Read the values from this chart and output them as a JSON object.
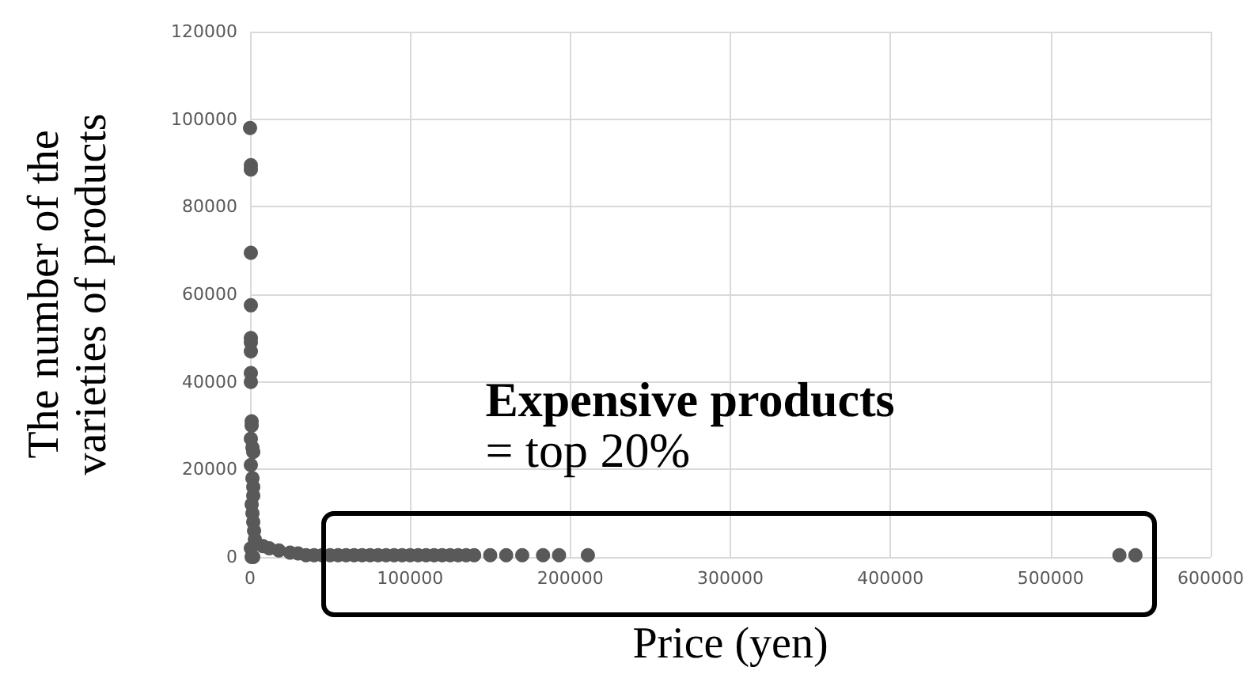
{
  "chart_data": {
    "type": "scatter",
    "xlabel": "Price (yen)",
    "ylabel": "The number of the varieties of products",
    "annotations": [
      "Expensive products",
      "= top 20%"
    ],
    "xlim": [
      0,
      600000
    ],
    "xticks": [
      0,
      100000,
      200000,
      300000,
      400000,
      500000,
      600000
    ],
    "ylim": [
      0,
      120000
    ],
    "yticks": [
      0,
      20000,
      40000,
      60000,
      80000,
      100000,
      120000
    ],
    "grid": true,
    "marker": "circle",
    "series": [
      {
        "color": "#595959",
        "x": [
          0,
          500,
          500,
          500,
          500,
          500,
          500,
          500,
          500,
          500,
          1000,
          1000,
          500,
          1500,
          2000,
          500,
          1500,
          2000,
          2000,
          1000,
          1500,
          2000,
          2500,
          3000,
          500,
          1000,
          2000,
          8000,
          12000,
          18000,
          25000,
          30000,
          35000,
          40000,
          45000,
          50000,
          55000,
          60000,
          65000,
          70000,
          75000,
          80000,
          85000,
          90000,
          95000,
          100000,
          105000,
          110000,
          115000,
          120000,
          125000,
          130000,
          135000,
          140000,
          150000,
          160000,
          170000,
          183000,
          193000,
          211000,
          543000,
          553000
        ],
        "values": [
          98000,
          89500,
          88500,
          69500,
          57500,
          50000,
          49000,
          47000,
          42000,
          40000,
          31000,
          30000,
          27000,
          25000,
          24000,
          21000,
          18000,
          16000,
          14000,
          12000,
          10000,
          8000,
          6000,
          4000,
          2000,
          0,
          0,
          2500,
          2000,
          1500,
          1000,
          800,
          400,
          400,
          400,
          400,
          400,
          400,
          400,
          400,
          400,
          400,
          400,
          400,
          400,
          400,
          400,
          400,
          400,
          400,
          400,
          400,
          400,
          400,
          400,
          400,
          400,
          400,
          400,
          400,
          400,
          400
        ]
      }
    ]
  }
}
